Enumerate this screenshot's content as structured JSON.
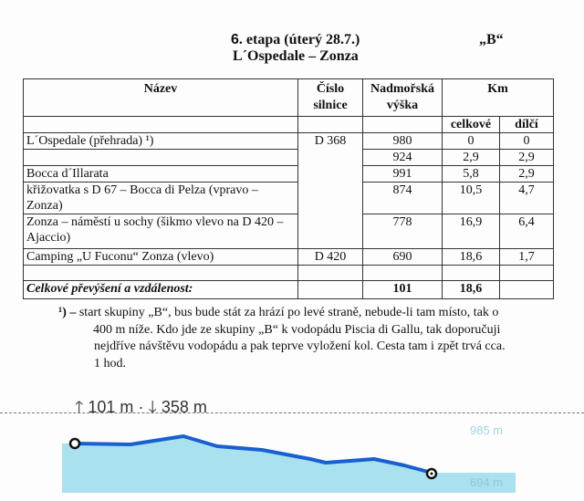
{
  "header": {
    "stage_number": "6",
    "stage_title": ". etapa (úterý 28.7.)",
    "group": "„B“",
    "route": "L´Ospedale – Zonza"
  },
  "table": {
    "columns": {
      "name": "Název",
      "road_line1": "Číslo",
      "road_line2": "silnice",
      "altitude_line1": "Nadmořská",
      "altitude_line2": "výška",
      "km": "Km",
      "km_total": "celkové",
      "km_partial": "dílčí"
    },
    "rows": [
      {
        "name": "L´Ospedale (přehrada) ¹)",
        "road": "D 368",
        "altitude": "980",
        "total": "0",
        "partial": "0"
      },
      {
        "name": "",
        "road": "",
        "altitude": "924",
        "total": "2,9",
        "partial": "2,9"
      },
      {
        "name": "Bocca d´Illarata",
        "road": "",
        "altitude": "991",
        "total": "5,8",
        "partial": "2,9"
      },
      {
        "name": "křižovatka s D 67 – Bocca di Pelza (vpravo – Zonza)",
        "road": "",
        "altitude": "874",
        "total": "10,5",
        "partial": "4,7"
      },
      {
        "name": "Zonza – náměstí u sochy (šikmo vlevo na D 420 – Ajaccio)",
        "road": "",
        "altitude": "778",
        "total": "16,9",
        "partial": "6,4"
      },
      {
        "name": "Camping „U Fuconu“ Zonza (vlevo)",
        "road": "D 420",
        "altitude": "690",
        "total": "18,6",
        "partial": "1,7"
      }
    ],
    "summary": {
      "label": "Celkové převýšení a vzdálenost:",
      "altitude": "101",
      "total": "18,6"
    }
  },
  "footnote": {
    "marker": "¹) –",
    "line1": "start skupiny „B“, bus bude stát za hrází po levé straně, nebude-li tam místo, tak o",
    "line2": "400 m níže. Kdo jde ze skupiny „B“ k vodopádu Piscia di Gallu, tak doporučuji",
    "line3": "nejdříve návštěvu vodopádu a pak teprve vyložení kol. Cesta tam i zpět trvá cca.",
    "line4": "1 hod."
  },
  "profile": {
    "ascent": "101 m",
    "descent": "358 m",
    "separator": "·",
    "max_label": "985 m",
    "min_label": "694 m",
    "line_color": "#1a5fd0",
    "fill_color": "#a9e2ee",
    "label_color": "#9fd6e2"
  }
}
